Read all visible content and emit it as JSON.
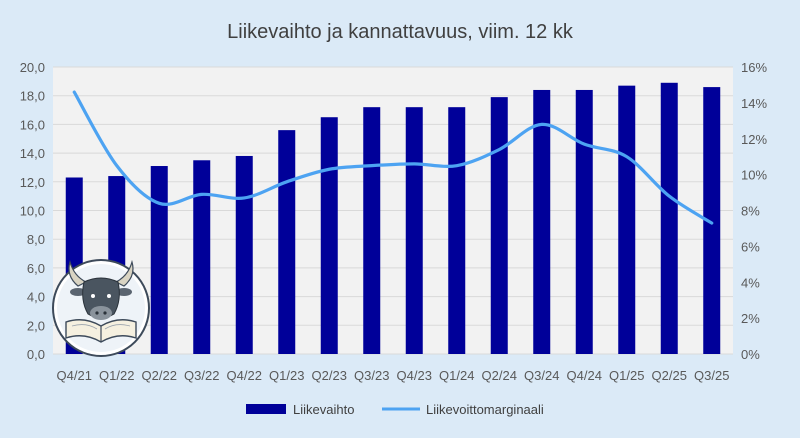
{
  "chart_data": {
    "type": "bar+line",
    "title": "Liikevaihto ja kannattavuus, viim. 12 kk",
    "categories": [
      "Q4/21",
      "Q1/22",
      "Q2/22",
      "Q3/22",
      "Q4/22",
      "Q1/23",
      "Q2/23",
      "Q3/23",
      "Q4/23",
      "Q1/24",
      "Q2/24",
      "Q3/24",
      "Q4/24",
      "Q1/25",
      "Q2/25",
      "Q3/25"
    ],
    "series": [
      {
        "name": "Liikevaihto",
        "type": "bar",
        "axis": "left",
        "color": "#000099",
        "values": [
          12.3,
          12.4,
          13.1,
          13.5,
          13.8,
          15.6,
          16.5,
          17.2,
          17.2,
          17.2,
          17.9,
          18.4,
          18.4,
          18.7,
          18.9,
          18.6
        ]
      },
      {
        "name": "Liikevoittomarginaali",
        "type": "line",
        "axis": "right",
        "color": "#4da3f2",
        "values": [
          14.6,
          10.5,
          8.4,
          8.9,
          8.7,
          9.6,
          10.3,
          10.5,
          10.6,
          10.5,
          11.4,
          12.8,
          11.7,
          11.0,
          8.8,
          7.3
        ]
      }
    ],
    "y_left": {
      "min": 0,
      "max": 20,
      "step": 2,
      "tick_labels": [
        "0,0",
        "2,0",
        "4,0",
        "6,0",
        "8,0",
        "10,0",
        "12,0",
        "14,0",
        "16,0",
        "18,0",
        "20,0"
      ]
    },
    "y_right": {
      "min": 0,
      "max": 16,
      "step": 2,
      "tick_labels": [
        "0%",
        "2%",
        "4%",
        "6%",
        "8%",
        "10%",
        "12%",
        "14%",
        "16%"
      ]
    },
    "grid": true,
    "legend": "bottom-center",
    "plot_background": "#f2f2f2",
    "page_background": "#dbeaf7",
    "logo": "bull-reading-book-logo"
  }
}
